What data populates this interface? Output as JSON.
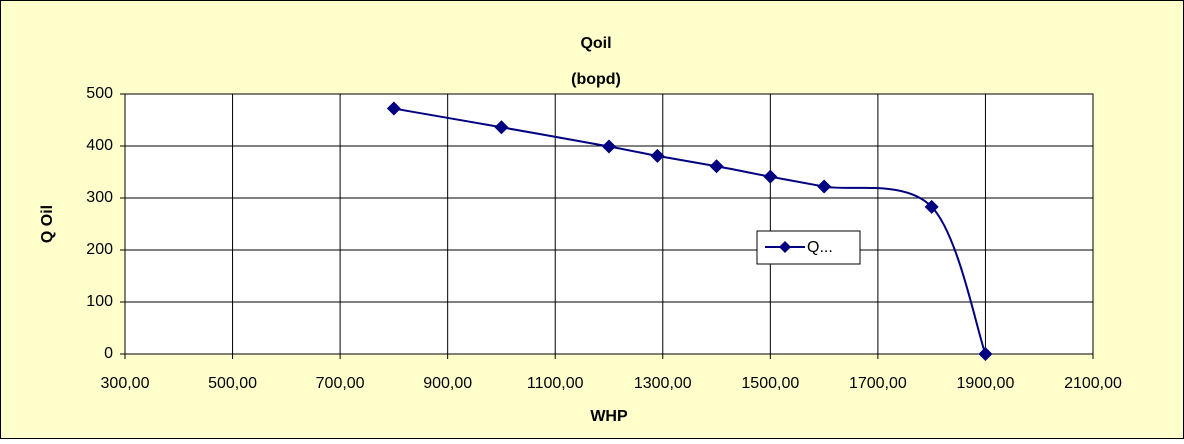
{
  "chart_data": {
    "type": "line",
    "title": "Qoil",
    "subtitle": "(bopd)",
    "x_label": "WHP",
    "y_label": "Q Oil",
    "x": [
      800,
      1000,
      1200,
      1290,
      1400,
      1500,
      1600,
      1800,
      1900
    ],
    "series": [
      {
        "name": "Q...",
        "color": "#000080",
        "values": [
          472,
          436,
          399,
          381,
          361,
          341,
          322,
          283,
          0
        ]
      }
    ],
    "xlim": [
      300,
      2100
    ],
    "xticks": [
      {
        "value": 300,
        "label": "300,00"
      },
      {
        "value": 500,
        "label": "500,00"
      },
      {
        "value": 700,
        "label": "700,00"
      },
      {
        "value": 900,
        "label": "900,00"
      },
      {
        "value": 1100,
        "label": "1100,00"
      },
      {
        "value": 1300,
        "label": "1300,00"
      },
      {
        "value": 1500,
        "label": "1500,00"
      },
      {
        "value": 1700,
        "label": "1700,00"
      },
      {
        "value": 1900,
        "label": "1900,00"
      },
      {
        "value": 2100,
        "label": "2100,00"
      }
    ],
    "ylim": [
      0,
      500
    ],
    "yticks": [
      0,
      100,
      200,
      300,
      400,
      500
    ],
    "grid": true,
    "smooth": true,
    "marker": "diamond",
    "legend_position": "right"
  }
}
